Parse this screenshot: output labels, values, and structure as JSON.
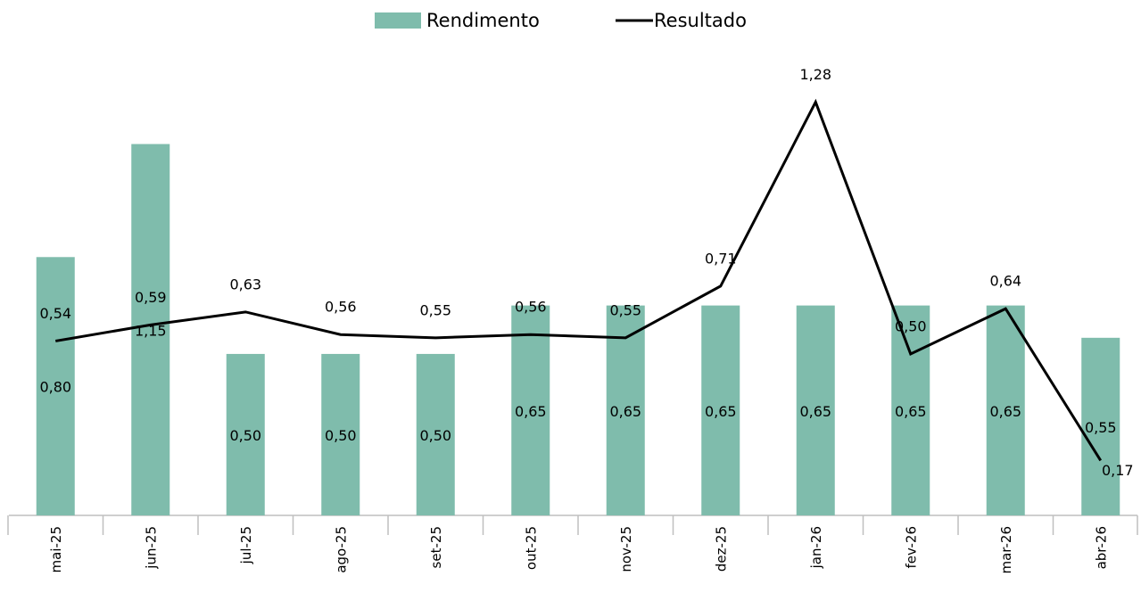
{
  "chart_data": {
    "type": "bar_line",
    "categories": [
      "mai-25",
      "jun-25",
      "jul-25",
      "ago-25",
      "set-25",
      "out-25",
      "nov-25",
      "dez-25",
      "jan-26",
      "fev-26",
      "mar-26",
      "abr-26"
    ],
    "series": [
      {
        "name": "Rendimento",
        "type": "bar",
        "color": "#7fbcac",
        "values": [
          0.8,
          1.15,
          0.5,
          0.5,
          0.5,
          0.65,
          0.65,
          0.65,
          0.65,
          0.65,
          0.65,
          0.55
        ],
        "value_labels": [
          "0,80",
          "1,15",
          "0,50",
          "0,50",
          "0,50",
          "0,65",
          "0,65",
          "0,65",
          "0,65",
          "0,65",
          "0,65",
          "0,55"
        ]
      },
      {
        "name": "Resultado",
        "type": "line",
        "color": "#000000",
        "values": [
          0.54,
          0.59,
          0.63,
          0.56,
          0.55,
          0.56,
          0.55,
          0.71,
          1.28,
          0.5,
          0.64,
          0.17
        ],
        "value_labels": [
          "0,54",
          "0,59",
          "0,63",
          "0,56",
          "0,55",
          "0,56",
          "0,55",
          "0,71",
          "1,28",
          "0,50",
          "0,64",
          "0,17"
        ]
      }
    ],
    "ylim": [
      0,
      1.4
    ],
    "legend": "top"
  }
}
